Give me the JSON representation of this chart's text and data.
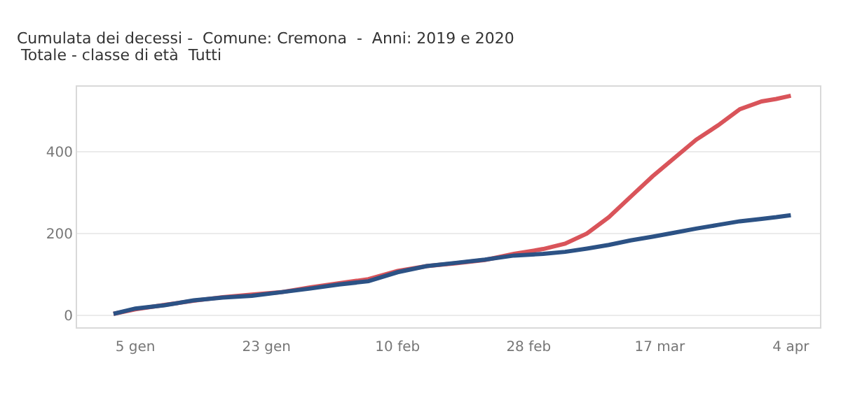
{
  "chart_data": {
    "type": "line",
    "title": "Cumulata dei decessi -  Comune: Cremona  -  Anni: 2019 e 2020",
    "subtitle": "Totale - classe di età  Tutti",
    "x": [
      "2020-01-02",
      "2020-01-05",
      "2020-01-09",
      "2020-01-13",
      "2020-01-17",
      "2020-01-21",
      "2020-01-25",
      "2020-01-29",
      "2020-02-02",
      "2020-02-06",
      "2020-02-10",
      "2020-02-14",
      "2020-02-18",
      "2020-02-22",
      "2020-02-26",
      "2020-03-01",
      "2020-03-04",
      "2020-03-07",
      "2020-03-10",
      "2020-03-13",
      "2020-03-16",
      "2020-03-19",
      "2020-03-22",
      "2020-03-25",
      "2020-03-28",
      "2020-03-31",
      "2020-04-02",
      "2020-04-04"
    ],
    "series": [
      {
        "color": "#d9545a",
        "values": [
          3,
          14,
          25,
          35,
          44,
          50,
          56,
          68,
          78,
          88,
          108,
          120,
          127,
          135,
          150,
          162,
          175,
          200,
          240,
          290,
          340,
          385,
          430,
          465,
          505,
          524,
          530,
          538
        ]
      },
      {
        "color": "#2c5285",
        "values": [
          3,
          16,
          24,
          36,
          43,
          47,
          56,
          65,
          75,
          83,
          105,
          120,
          128,
          136,
          146,
          150,
          155,
          163,
          172,
          183,
          192,
          202,
          212,
          221,
          230,
          236,
          240,
          245
        ]
      }
    ],
    "xlim": [
      "2019-12-28",
      "2020-04-08"
    ],
    "xticks": [
      {
        "value": "2020-01-05",
        "label": "5 gen"
      },
      {
        "value": "2020-01-23",
        "label": "23 gen"
      },
      {
        "value": "2020-02-10",
        "label": "10 feb"
      },
      {
        "value": "2020-02-28",
        "label": "28 feb"
      },
      {
        "value": "2020-03-17",
        "label": "17 mar"
      },
      {
        "value": "2020-04-04",
        "label": "4 apr"
      }
    ],
    "ylim": [
      -30,
      560
    ],
    "yticks": [
      0,
      200,
      400
    ],
    "grid": "y",
    "marker": "none",
    "line_style": "solid"
  }
}
